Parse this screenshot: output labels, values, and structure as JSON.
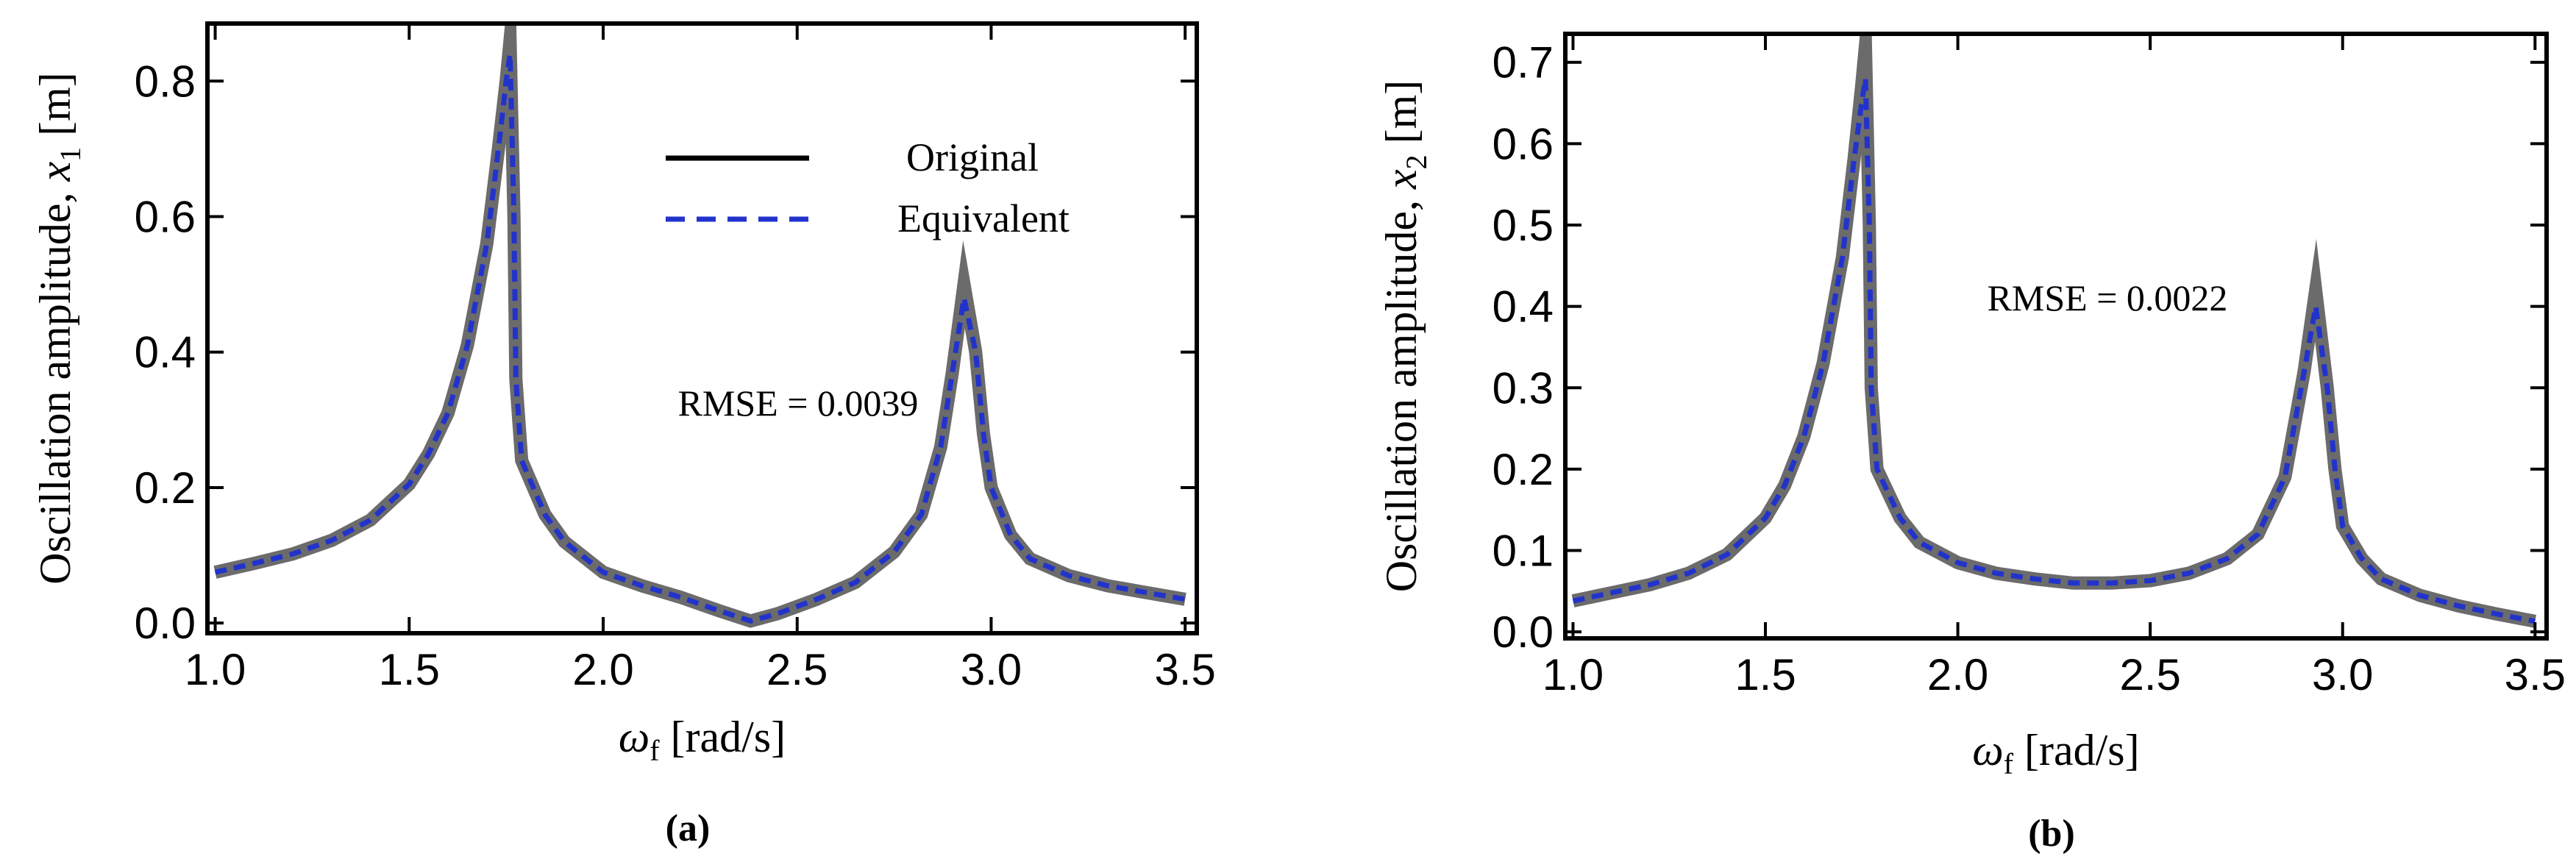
{
  "charts": [
    {
      "id": "a",
      "caption": "(a)",
      "type": "line",
      "ylabel_text": "Oscillation amplitude, ",
      "ylabel_var": "x",
      "ylabel_sub": "1",
      "ylabel_unit": " [m]",
      "xlabel_var": "ω",
      "xlabel_sub": "f",
      "xlabel_unit": " [rad/s]",
      "xlim": [
        0.98,
        3.53
      ],
      "ylim": [
        -0.015,
        0.885
      ],
      "xticks": [
        1.0,
        1.5,
        2.0,
        2.5,
        3.0,
        3.5
      ],
      "xtick_labels": [
        "1.0",
        "1.5",
        "2.0",
        "2.5",
        "3.0",
        "3.5"
      ],
      "yticks": [
        0.0,
        0.2,
        0.4,
        0.6,
        0.8
      ],
      "ytick_labels": [
        "0.0",
        "0.2",
        "0.4",
        "0.6",
        "0.8"
      ],
      "annotation": "RMSE = 0.0039",
      "legend": {
        "placement": "top-center",
        "entries": [
          "Original",
          "Equivalent"
        ]
      },
      "series": [
        {
          "name": "Original",
          "color": "#6b6b6b",
          "style": "solid",
          "points": [
            [
              1.0,
              0.075
            ],
            [
              1.1,
              0.088
            ],
            [
              1.2,
              0.102
            ],
            [
              1.3,
              0.122
            ],
            [
              1.4,
              0.152
            ],
            [
              1.5,
              0.205
            ],
            [
              1.55,
              0.25
            ],
            [
              1.6,
              0.31
            ],
            [
              1.65,
              0.41
            ],
            [
              1.7,
              0.56
            ],
            [
              1.73,
              0.7
            ],
            [
              1.75,
              0.8
            ],
            [
              1.76,
              0.86
            ],
            [
              1.77,
              0.6
            ],
            [
              1.775,
              0.36
            ],
            [
              1.79,
              0.24
            ],
            [
              1.85,
              0.16
            ],
            [
              1.9,
              0.12
            ],
            [
              2.0,
              0.075
            ],
            [
              2.1,
              0.055
            ],
            [
              2.2,
              0.038
            ],
            [
              2.3,
              0.018
            ],
            [
              2.38,
              0.003
            ],
            [
              2.45,
              0.014
            ],
            [
              2.55,
              0.035
            ],
            [
              2.65,
              0.06
            ],
            [
              2.75,
              0.105
            ],
            [
              2.82,
              0.16
            ],
            [
              2.87,
              0.26
            ],
            [
              2.9,
              0.37
            ],
            [
              2.93,
              0.5
            ],
            [
              2.96,
              0.4
            ],
            [
              2.98,
              0.28
            ],
            [
              3.0,
              0.2
            ],
            [
              3.05,
              0.13
            ],
            [
              3.1,
              0.095
            ],
            [
              3.2,
              0.07
            ],
            [
              3.3,
              0.055
            ],
            [
              3.4,
              0.045
            ],
            [
              3.5,
              0.035
            ]
          ]
        },
        {
          "name": "Equivalent",
          "color": "#2233cc",
          "style": "dashed",
          "points": [
            [
              1.0,
              0.075
            ],
            [
              1.1,
              0.088
            ],
            [
              1.2,
              0.102
            ],
            [
              1.3,
              0.122
            ],
            [
              1.4,
              0.152
            ],
            [
              1.5,
              0.205
            ],
            [
              1.55,
              0.25
            ],
            [
              1.6,
              0.31
            ],
            [
              1.65,
              0.41
            ],
            [
              1.7,
              0.56
            ],
            [
              1.73,
              0.7
            ],
            [
              1.75,
              0.8
            ],
            [
              1.76,
              0.84
            ],
            [
              1.77,
              0.6
            ],
            [
              1.775,
              0.36
            ],
            [
              1.79,
              0.24
            ],
            [
              1.85,
              0.16
            ],
            [
              1.9,
              0.12
            ],
            [
              2.0,
              0.075
            ],
            [
              2.1,
              0.055
            ],
            [
              2.2,
              0.038
            ],
            [
              2.3,
              0.018
            ],
            [
              2.38,
              0.003
            ],
            [
              2.45,
              0.014
            ],
            [
              2.55,
              0.035
            ],
            [
              2.65,
              0.06
            ],
            [
              2.75,
              0.105
            ],
            [
              2.82,
              0.16
            ],
            [
              2.87,
              0.26
            ],
            [
              2.9,
              0.37
            ],
            [
              2.93,
              0.48
            ],
            [
              2.96,
              0.4
            ],
            [
              2.98,
              0.28
            ],
            [
              3.0,
              0.2
            ],
            [
              3.05,
              0.13
            ],
            [
              3.1,
              0.095
            ],
            [
              3.2,
              0.07
            ],
            [
              3.3,
              0.055
            ],
            [
              3.4,
              0.045
            ],
            [
              3.5,
              0.035
            ]
          ]
        }
      ]
    },
    {
      "id": "b",
      "caption": "(b)",
      "type": "line",
      "ylabel_text": "Oscillation amplitude, ",
      "ylabel_var": "x",
      "ylabel_sub": "2",
      "ylabel_unit": " [m]",
      "xlabel_var": "ω",
      "xlabel_sub": "f",
      "xlabel_unit": " [rad/s]",
      "xlim": [
        0.98,
        3.53
      ],
      "ylim": [
        -0.008,
        0.735
      ],
      "xticks": [
        1.0,
        1.5,
        2.0,
        2.5,
        3.0,
        3.5
      ],
      "xtick_labels": [
        "1.0",
        "1.5",
        "2.0",
        "2.5",
        "3.0",
        "3.5"
      ],
      "yticks": [
        0.0,
        0.1,
        0.2,
        0.3,
        0.4,
        0.5,
        0.6,
        0.7
      ],
      "ytick_labels": [
        "0.0",
        "0.1",
        "0.2",
        "0.3",
        "0.4",
        "0.5",
        "0.6",
        "0.7"
      ],
      "annotation": "RMSE = 0.0022",
      "series": [
        {
          "name": "Original",
          "color": "#6b6b6b",
          "style": "solid",
          "points": [
            [
              1.0,
              0.038
            ],
            [
              1.1,
              0.048
            ],
            [
              1.2,
              0.058
            ],
            [
              1.3,
              0.072
            ],
            [
              1.4,
              0.095
            ],
            [
              1.5,
              0.14
            ],
            [
              1.55,
              0.18
            ],
            [
              1.6,
              0.24
            ],
            [
              1.65,
              0.33
            ],
            [
              1.7,
              0.46
            ],
            [
              1.73,
              0.58
            ],
            [
              1.75,
              0.67
            ],
            [
              1.76,
              0.72
            ],
            [
              1.77,
              0.5
            ],
            [
              1.775,
              0.3
            ],
            [
              1.79,
              0.2
            ],
            [
              1.85,
              0.14
            ],
            [
              1.9,
              0.11
            ],
            [
              2.0,
              0.085
            ],
            [
              2.1,
              0.072
            ],
            [
              2.2,
              0.065
            ],
            [
              2.3,
              0.06
            ],
            [
              2.4,
              0.06
            ],
            [
              2.5,
              0.063
            ],
            [
              2.6,
              0.072
            ],
            [
              2.7,
              0.09
            ],
            [
              2.78,
              0.12
            ],
            [
              2.85,
              0.19
            ],
            [
              2.9,
              0.32
            ],
            [
              2.93,
              0.42
            ],
            [
              2.96,
              0.3
            ],
            [
              2.98,
              0.2
            ],
            [
              3.0,
              0.13
            ],
            [
              3.05,
              0.09
            ],
            [
              3.1,
              0.065
            ],
            [
              3.2,
              0.045
            ],
            [
              3.3,
              0.032
            ],
            [
              3.4,
              0.022
            ],
            [
              3.5,
              0.013
            ]
          ]
        },
        {
          "name": "Equivalent",
          "color": "#2233cc",
          "style": "dashed",
          "points": [
            [
              1.0,
              0.038
            ],
            [
              1.1,
              0.048
            ],
            [
              1.2,
              0.058
            ],
            [
              1.3,
              0.072
            ],
            [
              1.4,
              0.095
            ],
            [
              1.5,
              0.14
            ],
            [
              1.55,
              0.18
            ],
            [
              1.6,
              0.24
            ],
            [
              1.65,
              0.33
            ],
            [
              1.7,
              0.46
            ],
            [
              1.73,
              0.58
            ],
            [
              1.75,
              0.65
            ],
            [
              1.76,
              0.68
            ],
            [
              1.77,
              0.5
            ],
            [
              1.775,
              0.3
            ],
            [
              1.79,
              0.2
            ],
            [
              1.85,
              0.14
            ],
            [
              1.9,
              0.11
            ],
            [
              2.0,
              0.085
            ],
            [
              2.1,
              0.072
            ],
            [
              2.2,
              0.065
            ],
            [
              2.3,
              0.06
            ],
            [
              2.4,
              0.06
            ],
            [
              2.5,
              0.063
            ],
            [
              2.6,
              0.072
            ],
            [
              2.7,
              0.09
            ],
            [
              2.78,
              0.12
            ],
            [
              2.85,
              0.19
            ],
            [
              2.9,
              0.32
            ],
            [
              2.93,
              0.4
            ],
            [
              2.96,
              0.3
            ],
            [
              2.98,
              0.2
            ],
            [
              3.0,
              0.13
            ],
            [
              3.05,
              0.09
            ],
            [
              3.1,
              0.065
            ],
            [
              3.2,
              0.045
            ],
            [
              3.3,
              0.032
            ],
            [
              3.4,
              0.022
            ],
            [
              3.5,
              0.013
            ]
          ]
        }
      ]
    }
  ]
}
